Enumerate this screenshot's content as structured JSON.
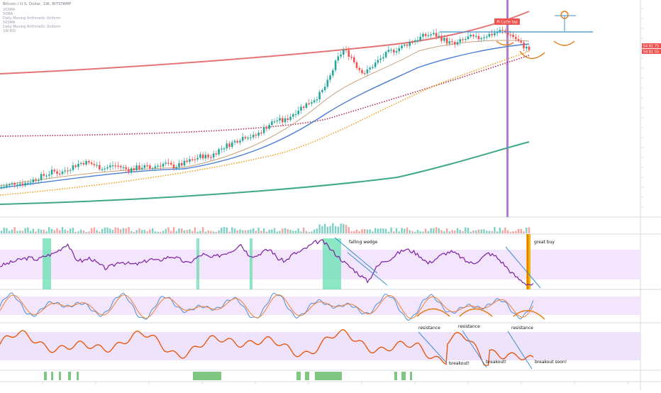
{
  "header": {
    "symbol": "Bitcoin / U.S. Dollar, 1W, BITSTAMP",
    "indicators": [
      "20SMA",
      "50MA",
      "Daily Moving Arithmetic Uniform",
      "50SMA",
      "Daily Moving Arithmetic Uniform",
      "1W RSI",
      "Stoch RSI",
      "Daily Moving Arithmetic Uniform"
    ]
  },
  "colors": {
    "bg": "#ffffff",
    "grid": "#f0f3fa",
    "up": "#26a69a",
    "down": "#ef5350",
    "ma_red": "#e57373",
    "ma_green": "#3ea88b",
    "ma_blue": "#4a7fd6",
    "ma_orange_dot": "#f0a020",
    "ma_maroon_dot": "#b03050",
    "rsi_line": "#7b1fa2",
    "rsi_band": "#f3e5fb",
    "highlight_green": "#66e0b0",
    "stoch_k": "#4a90d9",
    "stoch_d": "#f08030",
    "annotation_orange": "#e07b10",
    "annotation_blue": "#3a8fd0",
    "vertical_marker": "#b37ad6",
    "tag_red": "#ef5350"
  },
  "tags": {
    "pi_cycle": "Pi Cycle top",
    "price_top": "54 81 75",
    "price_bottom": "54 81 55"
  },
  "annotations": {
    "falling_wedge": "falling wedge",
    "great_buy": "great buy",
    "resistance": "resistance",
    "breakout": "breakout!",
    "breakout_soon": "breakout soon!"
  },
  "chart_data": {
    "type": "line",
    "panes": [
      "price",
      "volume",
      "rsi",
      "stoch_rsi",
      "macd_like",
      "signal_bars"
    ],
    "price_series": [
      0.02,
      0.03,
      0.05,
      0.04,
      0.06,
      0.08,
      0.1,
      0.12,
      0.11,
      0.14,
      0.16,
      0.18,
      0.17,
      0.15,
      0.14,
      0.16,
      0.15,
      0.13,
      0.14,
      0.15,
      0.14,
      0.16,
      0.17,
      0.15,
      0.16,
      0.18,
      0.2,
      0.22,
      0.21,
      0.25,
      0.28,
      0.3,
      0.33,
      0.35,
      0.34,
      0.38,
      0.42,
      0.45,
      0.44,
      0.48,
      0.52,
      0.55,
      0.58,
      0.62,
      0.7,
      0.82,
      0.9,
      0.86,
      0.78,
      0.75,
      0.8,
      0.84,
      0.88,
      0.9,
      0.92,
      0.95,
      0.97,
      0.99,
      1.0,
      0.98,
      0.95,
      0.93,
      0.96,
      0.98,
      0.97,
      0.99,
      1.0,
      1.02,
      1.01,
      0.98,
      0.93,
      0.9
    ],
    "rsi_series": [
      0.45,
      0.5,
      0.55,
      0.6,
      0.62,
      0.58,
      0.66,
      0.7,
      0.8,
      0.92,
      0.6,
      0.55,
      0.62,
      0.5,
      0.4,
      0.45,
      0.55,
      0.5,
      0.48,
      0.52,
      0.6,
      0.55,
      0.62,
      0.65,
      0.58,
      0.5,
      0.6,
      0.7,
      0.62,
      0.66,
      0.72,
      0.78,
      0.92,
      0.7,
      0.65,
      0.75,
      0.8,
      0.6,
      0.55,
      0.7,
      0.75,
      0.85,
      0.95,
      0.97,
      0.8,
      0.65,
      0.5,
      0.38,
      0.25,
      0.12,
      0.4,
      0.55,
      0.6,
      0.72,
      0.8,
      0.75,
      0.65,
      0.5,
      0.6,
      0.7,
      0.75,
      0.68,
      0.55,
      0.5,
      0.6,
      0.72,
      0.65,
      0.5,
      0.32,
      0.18,
      0.08,
      0.05
    ]
  }
}
